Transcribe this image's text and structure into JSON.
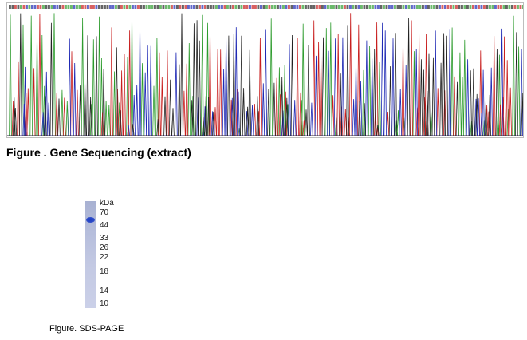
{
  "figure1": {
    "caption": "Figure . Gene Sequencing (extract)",
    "trace_colors": [
      "#2e9c2e",
      "#c81e1e",
      "#1e28b4",
      "#222222"
    ],
    "base_color_map": {
      "A": "#2e9c2e",
      "C": "#1e28b4",
      "G": "#222222",
      "T": "#c81e1e"
    }
  },
  "figure2": {
    "caption": "Figure. SDS-PAGE",
    "unit_label": "kDa",
    "markers": [
      "70",
      "44",
      "33",
      "26",
      "22",
      "18",
      "14",
      "10"
    ],
    "lane_color": "#b8c0dd",
    "band_color": "#2441c4"
  }
}
